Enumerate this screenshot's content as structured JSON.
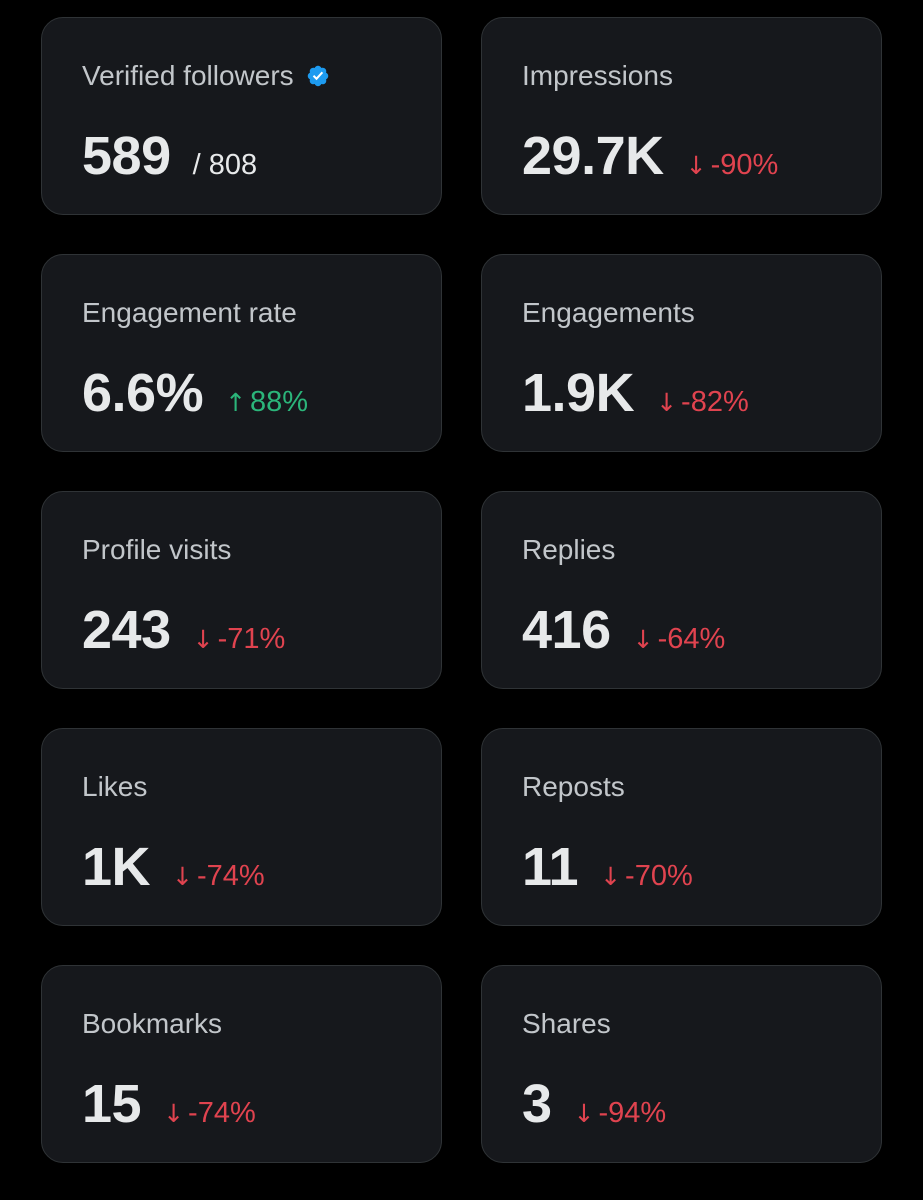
{
  "colors": {
    "background": "#000000",
    "card_background": "#16181c",
    "card_border": "#2f3336",
    "label_text": "#c2c6ca",
    "value_text": "#e7e9ea",
    "negative": "#e0434f",
    "positive": "#2bb57a",
    "verified_badge": "#1d9bf0"
  },
  "cards": [
    {
      "label": "Verified followers",
      "icon": "verified-badge-icon",
      "value": "589",
      "total": "/ 808"
    },
    {
      "label": "Impressions",
      "value": "29.7K",
      "change": "-90%",
      "direction": "down",
      "arrow": "↓"
    },
    {
      "label": "Engagement rate",
      "value": "6.6%",
      "change": "88%",
      "direction": "up",
      "arrow": "↑"
    },
    {
      "label": "Engagements",
      "value": "1.9K",
      "change": "-82%",
      "direction": "down",
      "arrow": "↓"
    },
    {
      "label": "Profile visits",
      "value": "243",
      "change": "-71%",
      "direction": "down",
      "arrow": "↓"
    },
    {
      "label": "Replies",
      "value": "416",
      "change": "-64%",
      "direction": "down",
      "arrow": "↓"
    },
    {
      "label": "Likes",
      "value": "1K",
      "change": "-74%",
      "direction": "down",
      "arrow": "↓"
    },
    {
      "label": "Reposts",
      "value": "11",
      "change": "-70%",
      "direction": "down",
      "arrow": "↓"
    },
    {
      "label": "Bookmarks",
      "value": "15",
      "change": "-74%",
      "direction": "down",
      "arrow": "↓"
    },
    {
      "label": "Shares",
      "value": "3",
      "change": "-94%",
      "direction": "down",
      "arrow": "↓"
    }
  ]
}
